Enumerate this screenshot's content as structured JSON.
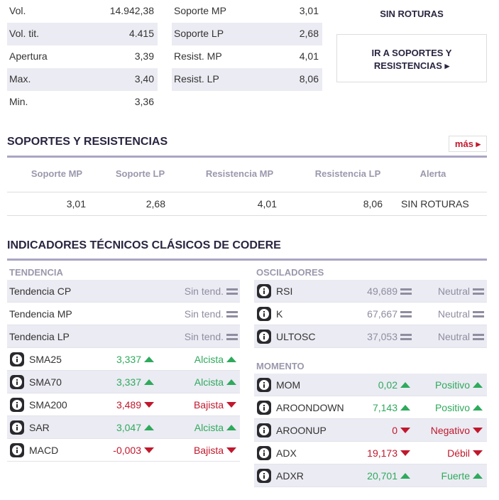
{
  "summary": {
    "left": [
      {
        "label": "Vol.",
        "value": "14.942,38"
      },
      {
        "label": "Vol. tit.",
        "value": "4.415"
      },
      {
        "label": "Apertura",
        "value": "3,39"
      },
      {
        "label": "Max.",
        "value": "3,40"
      },
      {
        "label": "Min.",
        "value": "3,36"
      }
    ],
    "middle": [
      {
        "label": "Soporte MP",
        "value": "3,01"
      },
      {
        "label": "Soporte LP",
        "value": "2,68"
      },
      {
        "label": "Resist. MP",
        "value": "4,01"
      },
      {
        "label": "Resist. LP",
        "value": "8,06"
      }
    ],
    "alert": "SIN ROTURAS",
    "link": "IR A SOPORTES Y RESISTENCIAS"
  },
  "supports": {
    "title": "SOPORTES Y RESISTENCIAS",
    "more": "más",
    "headers": [
      "Soporte MP",
      "Soporte LP",
      "Resistencia MP",
      "Resistencia LP",
      "Alerta"
    ],
    "row": [
      "3,01",
      "2,68",
      "4,01",
      "8,06",
      "SIN ROTURAS"
    ]
  },
  "indicators": {
    "title": "INDICADORES TÉCNICOS CLÁSICOS DE CODERE",
    "trend": {
      "title": "TENDENCIA",
      "rows": [
        {
          "name": "Tendencia CP",
          "signal": "Sin tend.",
          "trend": "flat"
        },
        {
          "name": "Tendencia MP",
          "signal": "Sin tend.",
          "trend": "flat"
        },
        {
          "name": "Tendencia LP",
          "signal": "Sin tend.",
          "trend": "flat"
        },
        {
          "name": "SMA25",
          "value": "3,337",
          "signal": "Alcista",
          "trend": "up",
          "info": true
        },
        {
          "name": "SMA70",
          "value": "3,337",
          "signal": "Alcista",
          "trend": "up",
          "info": true
        },
        {
          "name": "SMA200",
          "value": "3,489",
          "signal": "Bajista",
          "trend": "down",
          "info": true
        },
        {
          "name": "SAR",
          "value": "3,047",
          "signal": "Alcista",
          "trend": "up",
          "info": true
        },
        {
          "name": "MACD",
          "value": "-0,003",
          "signal": "Bajista",
          "trend": "down",
          "info": true
        }
      ]
    },
    "oscillators": {
      "title": "OSCILADORES",
      "rows": [
        {
          "name": "RSI",
          "value": "49,689",
          "signal": "Neutral",
          "trend": "flat",
          "info": true
        },
        {
          "name": "K",
          "value": "67,667",
          "signal": "Neutral",
          "trend": "flat",
          "info": true
        },
        {
          "name": "ULTOSC",
          "value": "37,053",
          "signal": "Neutral",
          "trend": "flat",
          "info": true
        }
      ]
    },
    "momentum": {
      "title": "MOMENTO",
      "rows": [
        {
          "name": "MOM",
          "value": "0,02",
          "signal": "Positivo",
          "trend": "up",
          "info": true
        },
        {
          "name": "AROONDOWN",
          "value": "7,143",
          "signal": "Positivo",
          "trend": "up",
          "info": true
        },
        {
          "name": "AROONUP",
          "value": "0",
          "signal": "Negativo",
          "trend": "down",
          "info": true
        },
        {
          "name": "ADX",
          "value": "19,173",
          "signal": "Débil",
          "trend": "down",
          "info": true
        },
        {
          "name": "ADXR",
          "value": "20,701",
          "signal": "Fuerte",
          "trend": "up",
          "info": true
        }
      ]
    }
  }
}
